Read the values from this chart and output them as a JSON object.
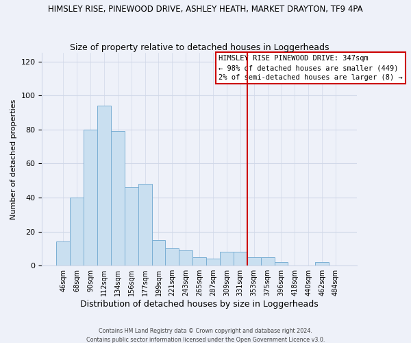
{
  "title": "HIMSLEY RISE, PINEWOOD DRIVE, ASHLEY HEATH, MARKET DRAYTON, TF9 4PA",
  "subtitle": "Size of property relative to detached houses in Loggerheads",
  "xlabel": "Distribution of detached houses by size in Loggerheads",
  "ylabel": "Number of detached properties",
  "bin_labels": [
    "46sqm",
    "68sqm",
    "90sqm",
    "112sqm",
    "134sqm",
    "156sqm",
    "177sqm",
    "199sqm",
    "221sqm",
    "243sqm",
    "265sqm",
    "287sqm",
    "309sqm",
    "331sqm",
    "353sqm",
    "375sqm",
    "396sqm",
    "418sqm",
    "440sqm",
    "462sqm",
    "484sqm"
  ],
  "bar_heights": [
    14,
    40,
    80,
    94,
    79,
    46,
    48,
    15,
    10,
    9,
    5,
    4,
    8,
    8,
    5,
    5,
    2,
    0,
    0,
    2,
    0
  ],
  "bar_color": "#c9dff0",
  "bar_edge_color": "#7bafd4",
  "vline_index": 14,
  "vline_color": "#cc0000",
  "ylim": [
    0,
    125
  ],
  "yticks": [
    0,
    20,
    40,
    60,
    80,
    100,
    120
  ],
  "annotation_title": "HIMSLEY RISE PINEWOOD DRIVE: 347sqm",
  "annotation_line1": "← 98% of detached houses are smaller (449)",
  "annotation_line2": "2% of semi-detached houses are larger (8) →",
  "footer1": "Contains HM Land Registry data © Crown copyright and database right 2024.",
  "footer2": "Contains public sector information licensed under the Open Government Licence v3.0.",
  "background_color": "#eef1f9",
  "grid_color": "#d0d8e8"
}
